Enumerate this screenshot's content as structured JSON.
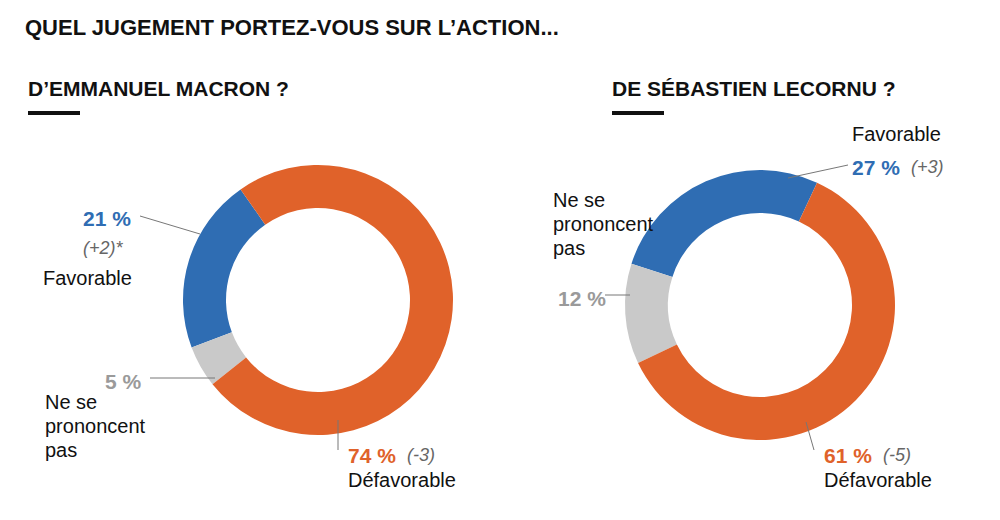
{
  "title": "QUEL JUGEMENT PORTEZ-VOUS SUR L’ACTION...",
  "chart_data": [
    {
      "type": "pie",
      "title": "D’EMMANUEL MACRON ?",
      "categories": [
        "Favorable",
        "Ne se prononcent pas",
        "Défavorable"
      ],
      "values": [
        21,
        5,
        74
      ],
      "value_labels": [
        "21 %",
        "5 %",
        "74 %"
      ],
      "changes": [
        {
          "value": 2,
          "label": "(+2)*"
        },
        null,
        {
          "value": -3,
          "label": "(-3)"
        }
      ],
      "colors": [
        "#2f6db3",
        "#c9c9c9",
        "#e0622a"
      ],
      "data_labels": true
    },
    {
      "type": "pie",
      "title": "DE SÉBASTIEN LECORNU ?",
      "categories": [
        "Favorable",
        "Ne se prononcent pas",
        "Défavorable"
      ],
      "values": [
        27,
        12,
        61
      ],
      "value_labels": [
        "27 %",
        "12 %",
        "61 %"
      ],
      "changes": [
        {
          "value": 3,
          "label": "(+3)"
        },
        null,
        {
          "value": -5,
          "label": "(-5)"
        }
      ],
      "colors": [
        "#2f6db3",
        "#c9c9c9",
        "#e0622a"
      ],
      "data_labels": true
    }
  ]
}
